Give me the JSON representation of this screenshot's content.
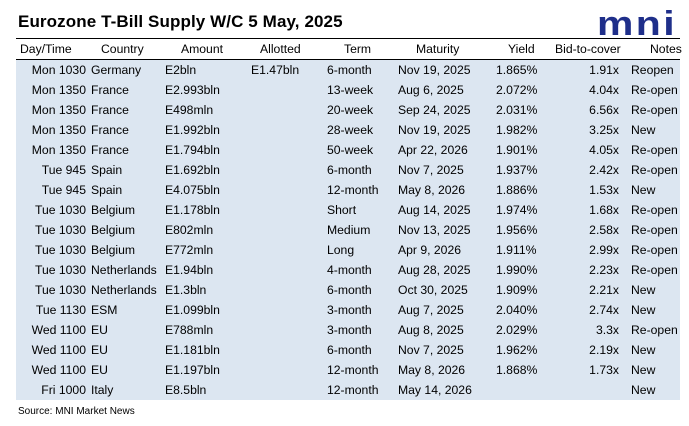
{
  "title": "Eurozone T-Bill Supply W/C 5 May, 2025",
  "logo": {
    "text": "mni",
    "color": "#1f2f8a"
  },
  "table": {
    "headers": {
      "day_time": "Day/Time",
      "country": "Country",
      "amount": "Amount",
      "allotted": "Allotted",
      "term": "Term",
      "maturity": "Maturity",
      "yield": "Yield",
      "bid_to_cover": "Bid-to-cover",
      "notes": "Notes"
    },
    "rows": [
      {
        "day_time": "Mon 1030",
        "country": "Germany",
        "amount": "E2bln",
        "allotted": "E1.47bln",
        "term": "6-month",
        "maturity": "Nov 19, 2025",
        "yield": "1.865%",
        "bid_to_cover": "1.91x",
        "notes": "Reopen"
      },
      {
        "day_time": "Mon 1350",
        "country": "France",
        "amount": "E2.993bln",
        "allotted": "",
        "term": "13-week",
        "maturity": "Aug 6, 2025",
        "yield": "2.072%",
        "bid_to_cover": "4.04x",
        "notes": "Re-open"
      },
      {
        "day_time": "Mon 1350",
        "country": "France",
        "amount": "E498mln",
        "allotted": "",
        "term": "20-week",
        "maturity": "Sep 24, 2025",
        "yield": "2.031%",
        "bid_to_cover": "6.56x",
        "notes": "Re-open"
      },
      {
        "day_time": "Mon 1350",
        "country": "France",
        "amount": "E1.992bln",
        "allotted": "",
        "term": "28-week",
        "maturity": "Nov 19, 2025",
        "yield": "1.982%",
        "bid_to_cover": "3.25x",
        "notes": "New"
      },
      {
        "day_time": "Mon 1350",
        "country": "France",
        "amount": "E1.794bln",
        "allotted": "",
        "term": "50-week",
        "maturity": "Apr 22, 2026",
        "yield": "1.901%",
        "bid_to_cover": "4.05x",
        "notes": "Re-open"
      },
      {
        "day_time": "Tue 945",
        "country": "Spain",
        "amount": "E1.692bln",
        "allotted": "",
        "term": "6-month",
        "maturity": "Nov 7, 2025",
        "yield": "1.937%",
        "bid_to_cover": "2.42x",
        "notes": "Re-open"
      },
      {
        "day_time": "Tue 945",
        "country": "Spain",
        "amount": "E4.075bln",
        "allotted": "",
        "term": "12-month",
        "maturity": "May 8, 2026",
        "yield": "1.886%",
        "bid_to_cover": "1.53x",
        "notes": "New"
      },
      {
        "day_time": "Tue 1030",
        "country": "Belgium",
        "amount": "E1.178bln",
        "allotted": "",
        "term": "Short",
        "maturity": "Aug 14, 2025",
        "yield": "1.974%",
        "bid_to_cover": "1.68x",
        "notes": "Re-open"
      },
      {
        "day_time": "Tue 1030",
        "country": "Belgium",
        "amount": "E802mln",
        "allotted": "",
        "term": "Medium",
        "maturity": "Nov 13, 2025",
        "yield": "1.956%",
        "bid_to_cover": "2.58x",
        "notes": "Re-open"
      },
      {
        "day_time": "Tue 1030",
        "country": "Belgium",
        "amount": "E772mln",
        "allotted": "",
        "term": "Long",
        "maturity": "Apr 9, 2026",
        "yield": "1.911%",
        "bid_to_cover": "2.99x",
        "notes": "Re-open"
      },
      {
        "day_time": "Tue 1030",
        "country": "Netherlands",
        "amount": "E1.94bln",
        "allotted": "",
        "term": "4-month",
        "maturity": "Aug 28, 2025",
        "yield": "1.990%",
        "bid_to_cover": "2.23x",
        "notes": "Re-open"
      },
      {
        "day_time": "Tue 1030",
        "country": "Netherlands",
        "amount": "E1.3bln",
        "allotted": "",
        "term": "6-month",
        "maturity": "Oct 30, 2025",
        "yield": "1.909%",
        "bid_to_cover": "2.21x",
        "notes": "New"
      },
      {
        "day_time": "Tue 1130",
        "country": "ESM",
        "amount": "E1.099bln",
        "allotted": "",
        "term": "3-month",
        "maturity": "Aug 7, 2025",
        "yield": "2.040%",
        "bid_to_cover": "2.74x",
        "notes": "New"
      },
      {
        "day_time": "Wed 1100",
        "country": "EU",
        "amount": "E788mln",
        "allotted": "",
        "term": "3-month",
        "maturity": "Aug 8, 2025",
        "yield": "2.029%",
        "bid_to_cover": "3.3x",
        "notes": "Re-open"
      },
      {
        "day_time": "Wed 1100",
        "country": "EU",
        "amount": "E1.181bln",
        "allotted": "",
        "term": "6-month",
        "maturity": "Nov 7, 2025",
        "yield": "1.962%",
        "bid_to_cover": "2.19x",
        "notes": "New"
      },
      {
        "day_time": "Wed 1100",
        "country": "EU",
        "amount": "E1.197bln",
        "allotted": "",
        "term": "12-month",
        "maturity": "May 8, 2026",
        "yield": "1.868%",
        "bid_to_cover": "1.73x",
        "notes": "New"
      },
      {
        "day_time": "Fri 1000",
        "country": "Italy",
        "amount": "E8.5bln",
        "allotted": "",
        "term": "12-month",
        "maturity": "May 14, 2026",
        "yield": "",
        "bid_to_cover": "",
        "notes": "New"
      }
    ]
  },
  "source": "Source: MNI Market News"
}
